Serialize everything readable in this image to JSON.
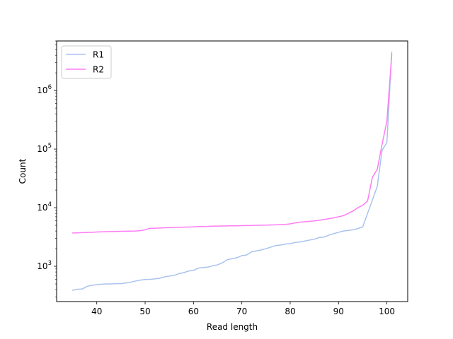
{
  "chart_data": {
    "type": "line",
    "title": "",
    "xlabel": "Read length",
    "ylabel": "Count",
    "yscale": "log",
    "xlim": [
      31.7,
      104.3
    ],
    "ylim": [
      250,
      7000000
    ],
    "x_ticks": [
      40,
      50,
      60,
      70,
      80,
      90,
      100
    ],
    "y_ticks": [
      {
        "value": 1000,
        "base": "10",
        "exp": "3"
      },
      {
        "value": 10000,
        "base": "10",
        "exp": "4"
      },
      {
        "value": 100000,
        "base": "10",
        "exp": "5"
      },
      {
        "value": 1000000,
        "base": "10",
        "exp": "6"
      }
    ],
    "grid": false,
    "legend_position": "upper left",
    "x": [
      35,
      36,
      37,
      38,
      39,
      40,
      41,
      42,
      43,
      44,
      45,
      46,
      47,
      48,
      49,
      50,
      51,
      52,
      53,
      54,
      55,
      56,
      57,
      58,
      59,
      60,
      61,
      62,
      63,
      64,
      65,
      66,
      67,
      68,
      69,
      70,
      71,
      72,
      73,
      74,
      75,
      76,
      77,
      78,
      79,
      80,
      81,
      82,
      83,
      84,
      85,
      86,
      87,
      88,
      89,
      90,
      91,
      92,
      93,
      94,
      95,
      96,
      97,
      98,
      99,
      100,
      101
    ],
    "series": [
      {
        "name": "R1",
        "color": "#a9c3ee",
        "values": [
          390,
          405,
          410,
          455,
          475,
          485,
          495,
          500,
          500,
          505,
          505,
          520,
          535,
          560,
          580,
          595,
          600,
          610,
          625,
          660,
          680,
          700,
          750,
          780,
          830,
          850,
          930,
          950,
          970,
          1020,
          1060,
          1150,
          1300,
          1350,
          1400,
          1520,
          1560,
          1760,
          1830,
          1900,
          2000,
          2120,
          2260,
          2300,
          2400,
          2430,
          2550,
          2600,
          2700,
          2800,
          2900,
          3100,
          3150,
          3400,
          3600,
          3800,
          4000,
          4100,
          4200,
          4400,
          4700,
          8000,
          13500,
          23000,
          95000,
          130000,
          4500000
        ]
      },
      {
        "name": "R2",
        "color": "#ff7cf5",
        "values": [
          3700,
          3720,
          3750,
          3780,
          3800,
          3850,
          3880,
          3900,
          3920,
          3930,
          3950,
          3970,
          3980,
          4000,
          4050,
          4200,
          4450,
          4470,
          4500,
          4550,
          4580,
          4600,
          4630,
          4660,
          4690,
          4700,
          4760,
          4790,
          4800,
          4830,
          4850,
          4870,
          4880,
          4900,
          4910,
          4930,
          4950,
          4980,
          5000,
          5030,
          5050,
          5080,
          5100,
          5150,
          5180,
          5300,
          5500,
          5650,
          5750,
          5850,
          5950,
          6100,
          6300,
          6500,
          6700,
          7000,
          7300,
          8000,
          8800,
          10000,
          11000,
          13000,
          33000,
          45000,
          120000,
          300000,
          4100000
        ]
      }
    ]
  }
}
